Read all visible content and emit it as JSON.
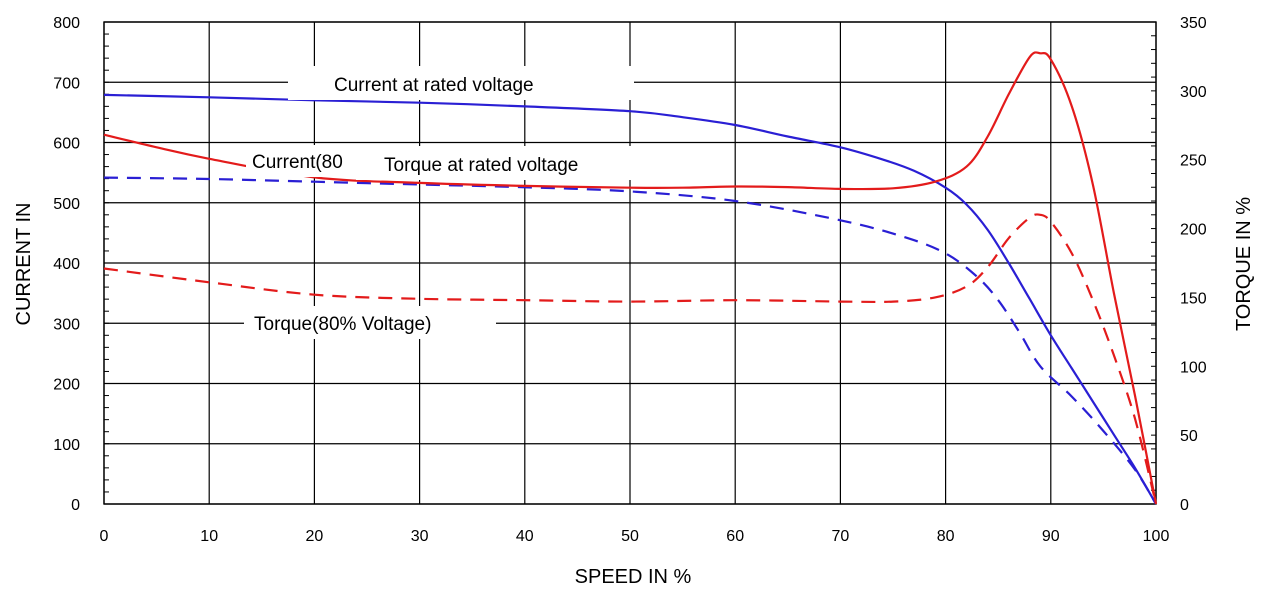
{
  "chart_data": {
    "type": "line",
    "title": "",
    "xlabel": "SPEED IN %",
    "ylabel": "CURRENT IN",
    "y2label": "TORQUE IN %",
    "xlim": [
      0,
      100
    ],
    "ylim": [
      0,
      800
    ],
    "y2lim": [
      0,
      350
    ],
    "x_ticks": [
      "0",
      "10",
      "20",
      "30",
      "40",
      "50",
      "60",
      "70",
      "80",
      "90",
      "100"
    ],
    "y_ticks": [
      "0",
      "100",
      "200",
      "300",
      "400",
      "500",
      "600",
      "700",
      "800"
    ],
    "y2_ticks": [
      "0",
      "50",
      "100",
      "150",
      "200",
      "250",
      "300",
      "350"
    ],
    "grid": true,
    "legend": "none",
    "annotations": [
      "Current at rated voltage",
      "Current(80",
      "Torque at rated voltage",
      "Torque(80% Voltage)"
    ],
    "series": [
      {
        "color": "#2a1fd4",
        "dash": "solid",
        "axis": "y",
        "x": [
          0,
          10,
          20,
          30,
          40,
          50,
          55,
          60,
          65,
          70,
          74,
          77,
          80,
          82,
          84,
          86,
          88,
          90,
          92,
          94,
          96,
          98,
          100
        ],
        "y": [
          679,
          675,
          670,
          666,
          660,
          652,
          642,
          629,
          610,
          592,
          572,
          553,
          525,
          497,
          455,
          400,
          340,
          280,
          225,
          170,
          115,
          60,
          0
        ]
      },
      {
        "color": "#2a1fd4",
        "dash": "dashed",
        "axis": "y2",
        "x": [
          0,
          10,
          20,
          30,
          40,
          50,
          60,
          70,
          76,
          80,
          83,
          85,
          87,
          89,
          92,
          95,
          98,
          100
        ],
        "y": [
          237,
          236,
          234,
          232,
          230,
          227,
          220,
          206,
          194,
          182,
          165,
          148,
          125,
          100,
          78,
          53,
          25,
          0
        ]
      },
      {
        "color": "#e31b1b",
        "dash": "solid",
        "axis": "y",
        "x": [
          0,
          5,
          10,
          20,
          30,
          40,
          50,
          55,
          60,
          65,
          70,
          75,
          79,
          82,
          84,
          86,
          88,
          89,
          90,
          92,
          94,
          96,
          98,
          100
        ],
        "y": [
          613,
          592,
          573,
          542,
          533,
          528,
          525,
          525,
          527,
          526,
          523,
          524,
          535,
          560,
          610,
          680,
          742,
          748,
          738,
          660,
          530,
          350,
          180,
          0
        ]
      },
      {
        "color": "#e31b1b",
        "dash": "dashed",
        "axis": "y2",
        "x": [
          0,
          10,
          20,
          30,
          40,
          50,
          60,
          70,
          75,
          79,
          82,
          84,
          86,
          88,
          89,
          90,
          92,
          94,
          96,
          98,
          100
        ],
        "y": [
          171,
          161,
          152,
          149,
          148,
          147,
          148,
          147,
          147,
          150,
          158,
          172,
          193,
          208,
          210,
          205,
          182,
          148,
          108,
          62,
          0
        ]
      }
    ]
  }
}
